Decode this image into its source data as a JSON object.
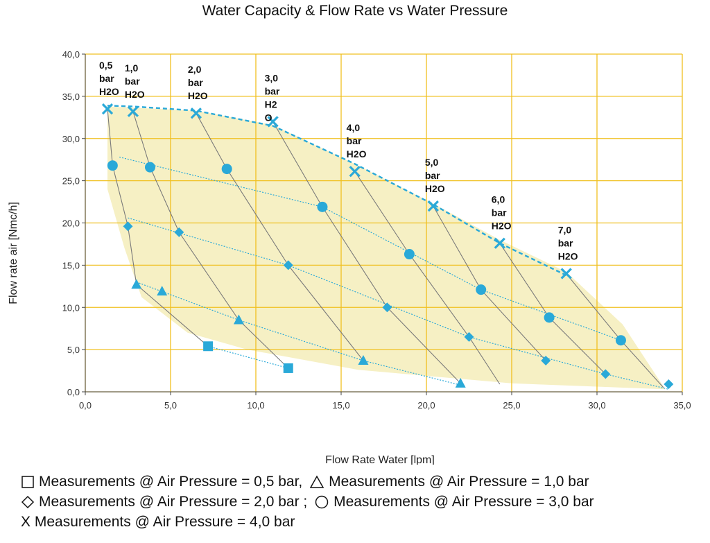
{
  "chart_data": {
    "type": "scatter",
    "title": "Water Capacity & Flow Rate vs Water Pressure",
    "xlabel": "Flow Rate Water [lpm]",
    "ylabel": "Flow rate air  [Nmc/h]",
    "xlim": [
      0,
      35
    ],
    "ylim": [
      0,
      40
    ],
    "xticks": [
      0,
      5,
      10,
      15,
      20,
      25,
      30,
      35
    ],
    "yticks": [
      0,
      5,
      10,
      15,
      20,
      25,
      30,
      35,
      40
    ],
    "xtick_labels": [
      "0,0",
      "5,0",
      "10,0",
      "15,0",
      "20,0",
      "25,0",
      "30,0",
      "35,0"
    ],
    "ytick_labels": [
      "0,0",
      "5,0",
      "10,0",
      "15,0",
      "20,0",
      "25,0",
      "30,0",
      "35,0",
      "40,0"
    ],
    "grid": true,
    "colors": {
      "marker": "#2aa9d8",
      "grid": "#f0c020",
      "region": "#f6f0c4",
      "pressure_line": "#7a7a7a"
    },
    "series": [
      {
        "name": "Air Pressure = 0,5 bar",
        "marker": "square",
        "points": [
          [
            7.2,
            5.4
          ],
          [
            11.9,
            2.8
          ]
        ]
      },
      {
        "name": "Air Pressure = 1,0 bar",
        "marker": "triangle",
        "points": [
          [
            3.0,
            12.7
          ],
          [
            4.5,
            11.9
          ],
          [
            9.0,
            8.5
          ],
          [
            16.3,
            3.7
          ],
          [
            22.0,
            1.0
          ]
        ]
      },
      {
        "name": "Air Pressure = 2,0 bar",
        "marker": "diamond",
        "points": [
          [
            2.5,
            19.6
          ],
          [
            5.5,
            18.9
          ],
          [
            11.9,
            15.0
          ],
          [
            17.7,
            10.0
          ],
          [
            22.5,
            6.5
          ],
          [
            27.0,
            3.7
          ],
          [
            30.5,
            2.1
          ],
          [
            34.2,
            0.9
          ]
        ]
      },
      {
        "name": "Air Pressure = 3,0 bar",
        "marker": "circle",
        "points": [
          [
            1.6,
            26.8
          ],
          [
            3.8,
            26.6
          ],
          [
            8.3,
            26.4
          ],
          [
            13.9,
            21.9
          ],
          [
            19.0,
            16.3
          ],
          [
            23.2,
            12.1
          ],
          [
            27.2,
            8.8
          ],
          [
            31.4,
            6.1
          ]
        ]
      },
      {
        "name": "Air Pressure = 4,0 bar",
        "marker": "x",
        "points": [
          [
            1.3,
            33.5
          ],
          [
            2.8,
            33.2
          ],
          [
            6.5,
            33.0
          ],
          [
            11.0,
            32.0
          ],
          [
            15.8,
            26.1
          ],
          [
            20.4,
            22.0
          ],
          [
            24.3,
            17.6
          ],
          [
            28.2,
            14.0
          ]
        ]
      }
    ],
    "pressure_lines": [
      {
        "label": [
          "0,5",
          "bar",
          "H2O"
        ],
        "points": [
          [
            1.3,
            33.5
          ],
          [
            1.6,
            26.8
          ],
          [
            2.5,
            19.6
          ],
          [
            3.0,
            12.7
          ],
          [
            7.2,
            5.4
          ]
        ]
      },
      {
        "label": [
          "1,0",
          "bar",
          "H2O"
        ],
        "points": [
          [
            2.8,
            33.2
          ],
          [
            3.8,
            26.6
          ],
          [
            5.5,
            18.9
          ],
          [
            9.0,
            8.5
          ],
          [
            11.9,
            2.8
          ]
        ]
      },
      {
        "label": [
          "2,0",
          "bar",
          "H2O"
        ],
        "points": [
          [
            6.5,
            33.0
          ],
          [
            8.3,
            26.4
          ],
          [
            11.9,
            15.0
          ],
          [
            16.3,
            3.7
          ]
        ]
      },
      {
        "label": [
          "3,0",
          "bar",
          "H2",
          "O"
        ],
        "points": [
          [
            11.0,
            32.0
          ],
          [
            13.9,
            21.9
          ],
          [
            17.7,
            10.0
          ],
          [
            22.0,
            1.0
          ]
        ]
      },
      {
        "label": [
          "4,0",
          "bar",
          "H2O"
        ],
        "points": [
          [
            15.8,
            26.1
          ],
          [
            19.0,
            16.3
          ],
          [
            22.5,
            6.5
          ],
          [
            24.3,
            0.9
          ]
        ]
      },
      {
        "label": [
          "5,0",
          "bar",
          "H2O"
        ],
        "points": [
          [
            20.4,
            22.0
          ],
          [
            23.2,
            12.1
          ],
          [
            27.0,
            3.7
          ]
        ]
      },
      {
        "label": [
          "6,0",
          "bar",
          "H2O"
        ],
        "points": [
          [
            24.3,
            17.6
          ],
          [
            27.2,
            8.8
          ],
          [
            30.5,
            2.1
          ]
        ]
      },
      {
        "label": [
          "7,0",
          "bar",
          "H2O"
        ],
        "points": [
          [
            28.2,
            14.0
          ],
          [
            31.4,
            6.1
          ],
          [
            33.9,
            0.5
          ]
        ]
      }
    ],
    "trend_lines": [
      {
        "series": "Air Pressure = 0,5 bar",
        "points": [
          [
            7.2,
            5.4
          ],
          [
            11.9,
            2.8
          ]
        ]
      },
      {
        "series": "Air Pressure = 1,0 bar",
        "points": [
          [
            3.0,
            13.0
          ],
          [
            9.0,
            8.5
          ],
          [
            16.3,
            3.7
          ],
          [
            22.0,
            0.8
          ]
        ]
      },
      {
        "series": "Air Pressure = 2,0 bar",
        "points": [
          [
            2.5,
            20.6
          ],
          [
            11.9,
            15.0
          ],
          [
            22.5,
            6.5
          ],
          [
            30.5,
            2.1
          ],
          [
            34.2,
            0.3
          ]
        ]
      },
      {
        "series": "Air Pressure = 3,0 bar",
        "points": [
          [
            2.0,
            27.8
          ],
          [
            13.9,
            21.9
          ],
          [
            23.2,
            12.1
          ],
          [
            31.4,
            6.1
          ]
        ]
      }
    ],
    "envelope_line": {
      "series": "Air Pressure = 4,0 bar",
      "style": "dashed",
      "points": [
        [
          1.3,
          33.9
        ],
        [
          2.8,
          33.8
        ],
        [
          6.5,
          33.3
        ],
        [
          11.0,
          31.5
        ],
        [
          15.8,
          27.0
        ],
        [
          20.4,
          22.2
        ],
        [
          24.3,
          17.6
        ],
        [
          28.2,
          13.8
        ]
      ]
    },
    "shaded_region": [
      [
        1.3,
        33.8
      ],
      [
        6.5,
        33.3
      ],
      [
        11.0,
        31.6
      ],
      [
        15.8,
        27.0
      ],
      [
        20.4,
        22.3
      ],
      [
        24.3,
        18.0
      ],
      [
        28.2,
        14.2
      ],
      [
        31.5,
        8.0
      ],
      [
        34.0,
        0.3
      ],
      [
        25.0,
        1.0
      ],
      [
        16.0,
        2.6
      ],
      [
        9.5,
        5.0
      ],
      [
        6.0,
        7.0
      ],
      [
        3.3,
        11.2
      ],
      [
        2.3,
        17.0
      ],
      [
        1.3,
        24.0
      ]
    ],
    "legend": {
      "row1": {
        "item1": "Measurements @ Air Pressure = 0,5 bar,",
        "item2": "Measurements @ Air Pressure = 1,0 bar"
      },
      "row2": {
        "item1": "Measurements @ Air Pressure = 2,0 bar ;",
        "item2": "Measurements @ Air Pressure = 3,0 bar"
      },
      "row3": {
        "item1": "X Measurements @ Air Pressure = 4,0 bar"
      }
    }
  }
}
